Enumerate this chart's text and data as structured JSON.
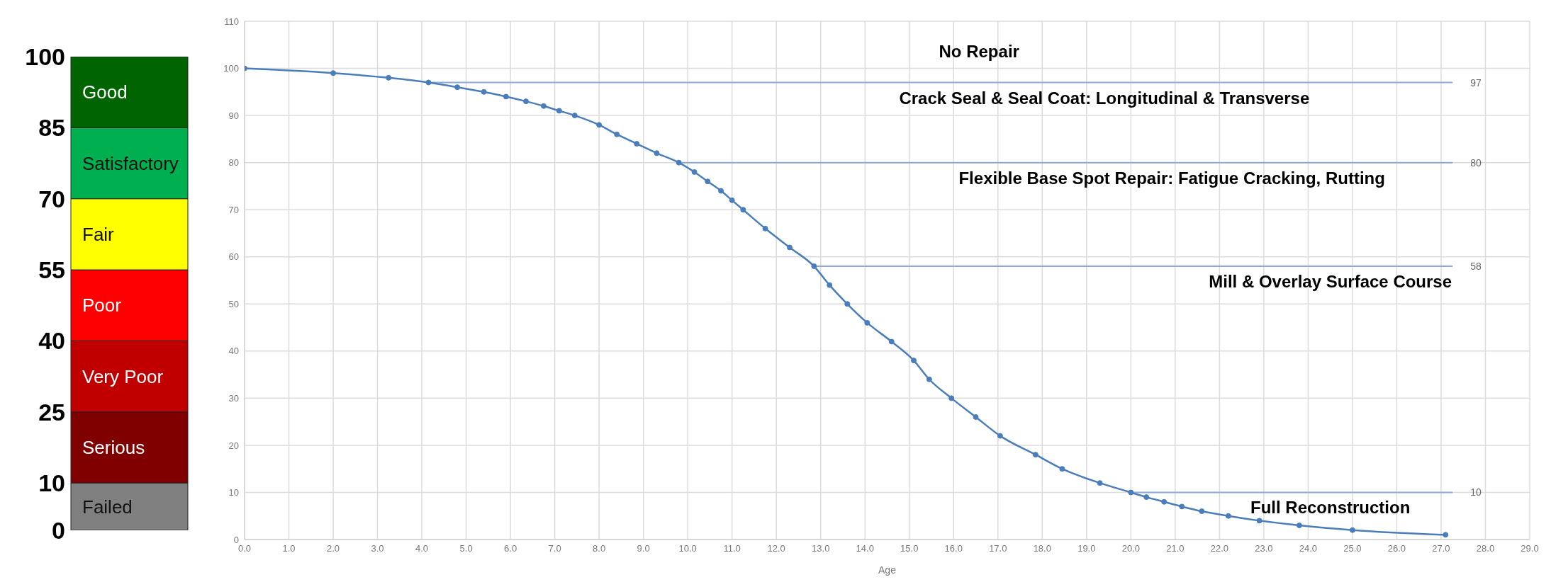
{
  "chart_data": [
    {
      "type": "bar",
      "stacked": true,
      "categories": [
        null
      ],
      "tick_labels": "y",
      "ylim": [
        0,
        100
      ],
      "yticks": [
        0,
        10,
        25,
        40,
        55,
        70,
        85,
        100
      ],
      "series": [
        {
          "name": "Failed",
          "color": "#808080",
          "values": [
            10
          ]
        },
        {
          "name": "Serious",
          "color": "#800000",
          "values": [
            15
          ]
        },
        {
          "name": "Very Poor",
          "color": "#c00000",
          "values": [
            15
          ]
        },
        {
          "name": "Poor",
          "color": "#ff0000",
          "values": [
            15
          ]
        },
        {
          "name": "Fair",
          "color": "#ffff00",
          "values": [
            15
          ]
        },
        {
          "name": "Satisfactory",
          "color": "#00b050",
          "values": [
            15
          ]
        },
        {
          "name": "Good",
          "color": "#006400",
          "values": [
            15
          ]
        }
      ]
    },
    {
      "type": "line",
      "xlabel": "Age",
      "grid": true,
      "marker": "circle",
      "line_style": "solid",
      "x": [
        0,
        2.0,
        3.25,
        4.15,
        4.8,
        5.4,
        5.9,
        6.35,
        6.75,
        7.1,
        7.45,
        8.0,
        8.4,
        8.85,
        9.3,
        9.8,
        10.15,
        10.45,
        10.75,
        11.0,
        11.25,
        11.75,
        12.3,
        12.85,
        13.2,
        13.6,
        14.05,
        14.6,
        15.1,
        15.45,
        15.95,
        16.5,
        17.05,
        17.85,
        18.45,
        19.3,
        20.0,
        20.35,
        20.75,
        21.15,
        21.6,
        22.2,
        22.9,
        23.8,
        25.0,
        27.1
      ],
      "series": [
        {
          "color": "#4a7ebb",
          "values": [
            100,
            99,
            98,
            97,
            96,
            95,
            94,
            93,
            92,
            91,
            90,
            88,
            86,
            84,
            82,
            80,
            78,
            76,
            74,
            72,
            70,
            66,
            62,
            58,
            54,
            50,
            46,
            42,
            38,
            34,
            30,
            26,
            22,
            18,
            15,
            12,
            10,
            9,
            8,
            7,
            6,
            5,
            4,
            3,
            2,
            1
          ]
        }
      ],
      "xlim": [
        0,
        29
      ],
      "ylim": [
        0,
        110
      ],
      "xticks": [
        {
          "value": 0,
          "label": "0.0"
        },
        {
          "value": 1,
          "label": "1.0"
        },
        {
          "value": 2,
          "label": "2.0"
        },
        {
          "value": 3,
          "label": "3.0"
        },
        {
          "value": 4,
          "label": "4.0"
        },
        {
          "value": 5,
          "label": "5.0"
        },
        {
          "value": 6,
          "label": "6.0"
        },
        {
          "value": 7,
          "label": "7.0"
        },
        {
          "value": 8,
          "label": "8.0"
        },
        {
          "value": 9,
          "label": "9.0"
        },
        {
          "value": 10,
          "label": "10.0"
        },
        {
          "value": 11,
          "label": "11.0"
        },
        {
          "value": 12,
          "label": "12.0"
        },
        {
          "value": 13,
          "label": "13.0"
        },
        {
          "value": 14,
          "label": "14.0"
        },
        {
          "value": 15,
          "label": "15.0"
        },
        {
          "value": 16,
          "label": "16.0"
        },
        {
          "value": 17,
          "label": "17.0"
        },
        {
          "value": 18,
          "label": "18.0"
        },
        {
          "value": 19,
          "label": "19.0"
        },
        {
          "value": 20,
          "label": "20.0"
        },
        {
          "value": 21,
          "label": "21.0"
        },
        {
          "value": 22,
          "label": "22.0"
        },
        {
          "value": 23,
          "label": "23.0"
        },
        {
          "value": 24,
          "label": "24.0"
        },
        {
          "value": 25,
          "label": "25.0"
        },
        {
          "value": 26,
          "label": "26.0"
        },
        {
          "value": 27,
          "label": "27.0"
        },
        {
          "value": 28,
          "label": "28.0"
        },
        {
          "value": 29,
          "label": "29.0"
        }
      ],
      "yticks": [
        0,
        10,
        20,
        30,
        40,
        50,
        60,
        70,
        80,
        90,
        100,
        110
      ],
      "ref_lines": [
        {
          "axis": "y",
          "value": 97,
          "label": "97",
          "color": "#8eaadb"
        },
        {
          "axis": "y",
          "value": 80,
          "label": "80",
          "color": "#8eaadb"
        },
        {
          "axis": "y",
          "value": 58,
          "label": "58",
          "color": "#8eaadb"
        },
        {
          "axis": "y",
          "value": 10,
          "label": "10",
          "color": "#8eaadb"
        }
      ],
      "annotations": [
        "No Repair",
        "Crack Seal & Seal Coat: Longitudinal & Transverse",
        "Flexible Base Spot Repair: Fatigue Cracking, Rutting",
        "Mill & Overlay Surface Course",
        "Full Reconstruction"
      ]
    }
  ]
}
